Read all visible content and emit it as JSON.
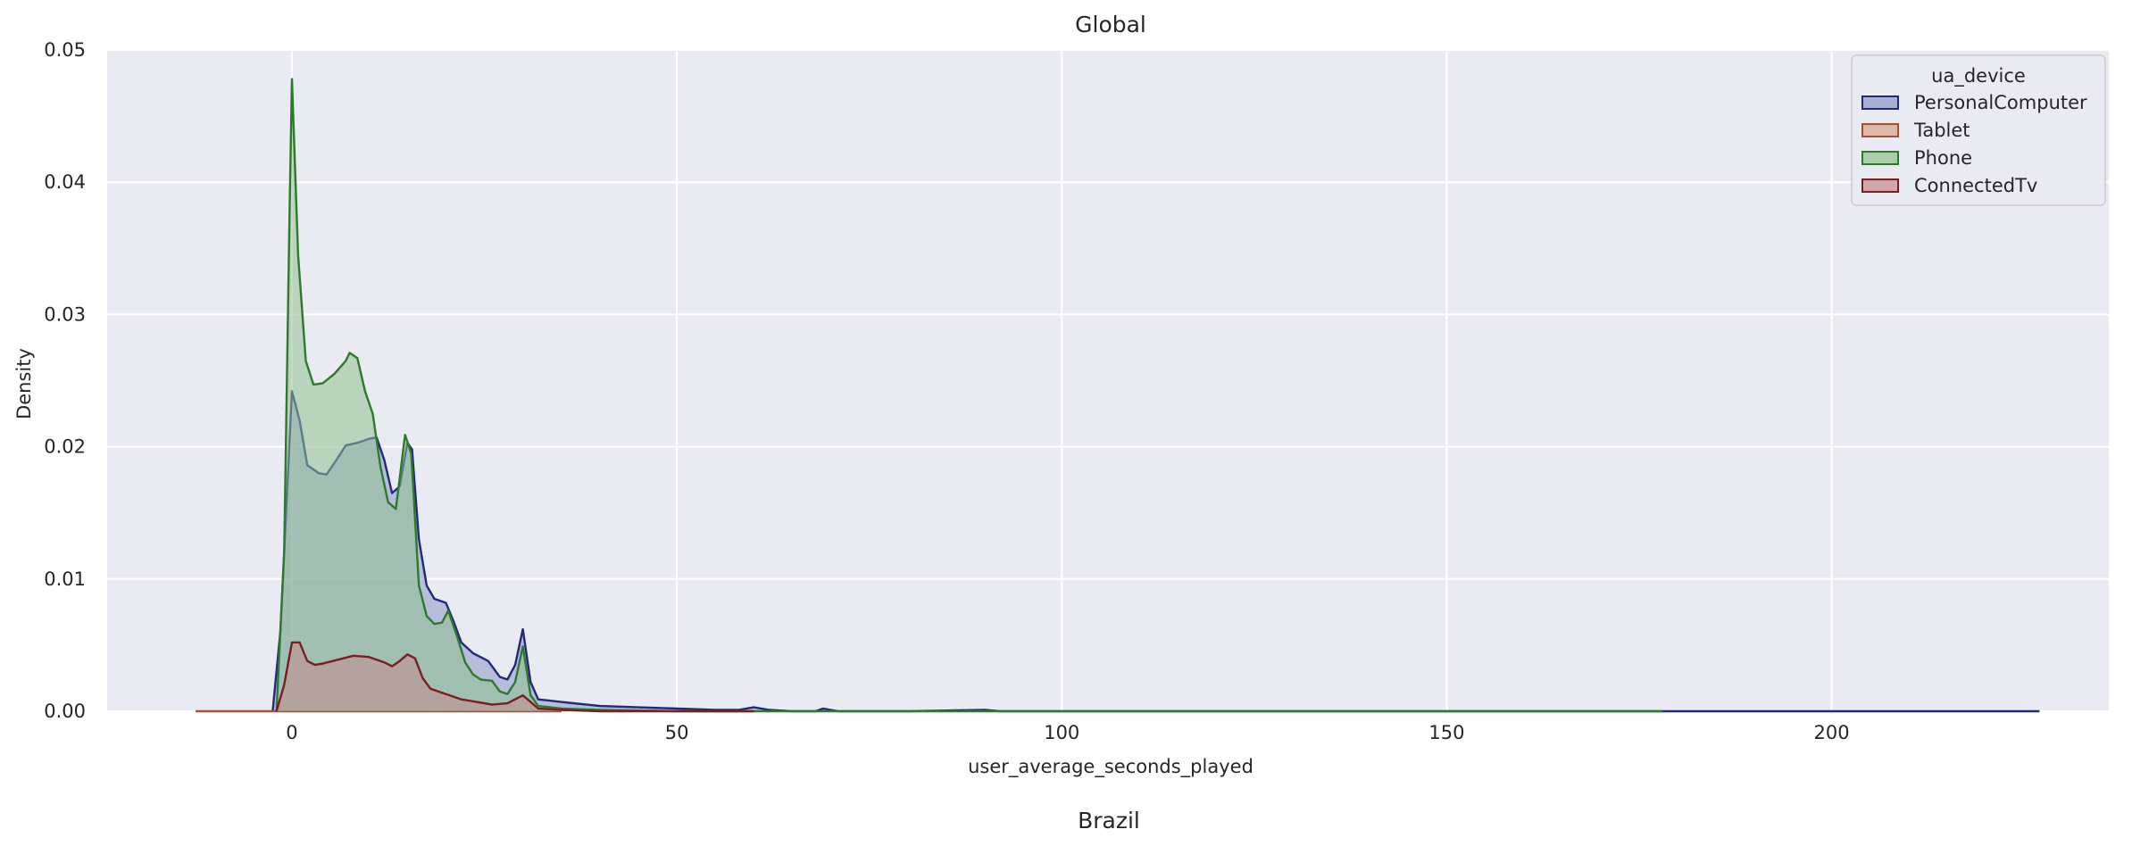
{
  "chart_data": {
    "type": "area",
    "title": "Global",
    "xlabel": "user_average_seconds_played",
    "ylabel": "Density",
    "xlim": [
      -24,
      236
    ],
    "ylim": [
      0,
      0.05
    ],
    "xticks": [
      0,
      50,
      100,
      150,
      200
    ],
    "yticks": [
      0.0,
      0.01,
      0.02,
      0.03,
      0.04,
      0.05
    ],
    "xtick_labels": [
      "0",
      "50",
      "100",
      "150",
      "200"
    ],
    "ytick_labels": [
      "0.00",
      "0.01",
      "0.02",
      "0.03",
      "0.04",
      "0.05"
    ],
    "grid": true,
    "legend_title": "ua_device",
    "legend_position": "top-right",
    "series": [
      {
        "name": "PersonalComputer",
        "line_color": "#1f2a7a",
        "fill_color": "#8c95c8",
        "points": [
          [
            -2.5,
            0
          ],
          [
            -1.5,
            0.006
          ],
          [
            -0.5,
            0.018
          ],
          [
            0,
            0.0242
          ],
          [
            1,
            0.022
          ],
          [
            2,
            0.0186
          ],
          [
            3.5,
            0.018
          ],
          [
            4.5,
            0.0179
          ],
          [
            6,
            0.0192
          ],
          [
            7,
            0.0201
          ],
          [
            8.5,
            0.0203
          ],
          [
            10,
            0.0206
          ],
          [
            11,
            0.0207
          ],
          [
            12,
            0.019
          ],
          [
            13,
            0.0165
          ],
          [
            14,
            0.017
          ],
          [
            15,
            0.0203
          ],
          [
            15.6,
            0.0198
          ],
          [
            16.5,
            0.013
          ],
          [
            17.5,
            0.0095
          ],
          [
            18.5,
            0.0085
          ],
          [
            20,
            0.0082
          ],
          [
            21,
            0.0068
          ],
          [
            22,
            0.0052
          ],
          [
            23.5,
            0.0044
          ],
          [
            25.5,
            0.0038
          ],
          [
            27,
            0.0026
          ],
          [
            28,
            0.0024
          ],
          [
            29,
            0.0035
          ],
          [
            30,
            0.0062
          ],
          [
            31,
            0.0022
          ],
          [
            32,
            0.0009
          ],
          [
            35,
            0.0007
          ],
          [
            40,
            0.0004
          ],
          [
            45,
            0.0003
          ],
          [
            50,
            0.0002
          ],
          [
            55,
            0.0001
          ],
          [
            58,
            0.0001
          ],
          [
            60,
            0.0003
          ],
          [
            62,
            0.0001
          ],
          [
            65,
            0.0
          ],
          [
            68,
            0.0
          ],
          [
            69,
            0.0002
          ],
          [
            71,
            0.0
          ],
          [
            80,
            0.0
          ],
          [
            90,
            0.0001
          ],
          [
            92,
            0.0
          ],
          [
            120,
            0.0
          ],
          [
            160,
            0.0
          ],
          [
            200,
            0.0
          ],
          [
            227,
            0.0
          ]
        ]
      },
      {
        "name": "Tablet",
        "line_color": "#a1522f",
        "fill_color": "#d8a48c",
        "points": [
          [
            -12.5,
            0
          ],
          [
            -4,
            0
          ],
          [
            -2,
            0.0
          ],
          [
            0,
            0.0
          ],
          [
            5,
            0.0
          ],
          [
            10,
            0.0
          ],
          [
            20,
            0.0
          ],
          [
            35,
            0.0
          ]
        ]
      },
      {
        "name": "Phone",
        "line_color": "#2d7a2d",
        "fill_color": "#8fc08f",
        "points": [
          [
            -2,
            0
          ],
          [
            -1,
            0.012
          ],
          [
            -0.3,
            0.038
          ],
          [
            0,
            0.0478
          ],
          [
            0.8,
            0.0345
          ],
          [
            1.8,
            0.0265
          ],
          [
            2.8,
            0.0247
          ],
          [
            4,
            0.0248
          ],
          [
            5.5,
            0.0255
          ],
          [
            7,
            0.0265
          ],
          [
            7.5,
            0.0271
          ],
          [
            8.5,
            0.0267
          ],
          [
            9.5,
            0.0242
          ],
          [
            10.5,
            0.0225
          ],
          [
            11.5,
            0.0185
          ],
          [
            12.5,
            0.0158
          ],
          [
            13.5,
            0.0153
          ],
          [
            14.7,
            0.0209
          ],
          [
            15.5,
            0.0195
          ],
          [
            16.5,
            0.0095
          ],
          [
            17.5,
            0.0072
          ],
          [
            18.5,
            0.0066
          ],
          [
            19.5,
            0.0067
          ],
          [
            20.3,
            0.0076
          ],
          [
            21.5,
            0.0056
          ],
          [
            22.5,
            0.0037
          ],
          [
            23.5,
            0.0028
          ],
          [
            24.5,
            0.0024
          ],
          [
            26,
            0.0023
          ],
          [
            27,
            0.0015
          ],
          [
            28,
            0.0013
          ],
          [
            29,
            0.0022
          ],
          [
            30,
            0.0049
          ],
          [
            31,
            0.0012
          ],
          [
            32,
            0.0004
          ],
          [
            35,
            0.0002
          ],
          [
            40,
            0.0001
          ],
          [
            50,
            0.0
          ],
          [
            70,
            0.0
          ],
          [
            100,
            0.0
          ],
          [
            150,
            0.0
          ],
          [
            178,
            0.0
          ]
        ]
      },
      {
        "name": "ConnectedTv",
        "line_color": "#7a1e1e",
        "fill_color": "#c48a8c",
        "points": [
          [
            -2,
            0
          ],
          [
            -1,
            0.002
          ],
          [
            0,
            0.0052
          ],
          [
            1,
            0.0052
          ],
          [
            2,
            0.0038
          ],
          [
            3,
            0.0035
          ],
          [
            4,
            0.0036
          ],
          [
            6,
            0.0039
          ],
          [
            8,
            0.0042
          ],
          [
            10,
            0.0041
          ],
          [
            12,
            0.0037
          ],
          [
            13,
            0.0034
          ],
          [
            14,
            0.0038
          ],
          [
            15,
            0.0043
          ],
          [
            16,
            0.004
          ],
          [
            17,
            0.0025
          ],
          [
            18,
            0.0017
          ],
          [
            20,
            0.0013
          ],
          [
            22,
            0.0009
          ],
          [
            24,
            0.0007
          ],
          [
            26,
            0.0005
          ],
          [
            28,
            0.0006
          ],
          [
            30,
            0.0012
          ],
          [
            31,
            0.0007
          ],
          [
            32,
            0.0002
          ],
          [
            35,
            0.0001
          ],
          [
            40,
            0.0
          ],
          [
            50,
            0.0
          ],
          [
            60,
            0.0
          ]
        ]
      }
    ]
  },
  "next_section_title": "Brazil"
}
